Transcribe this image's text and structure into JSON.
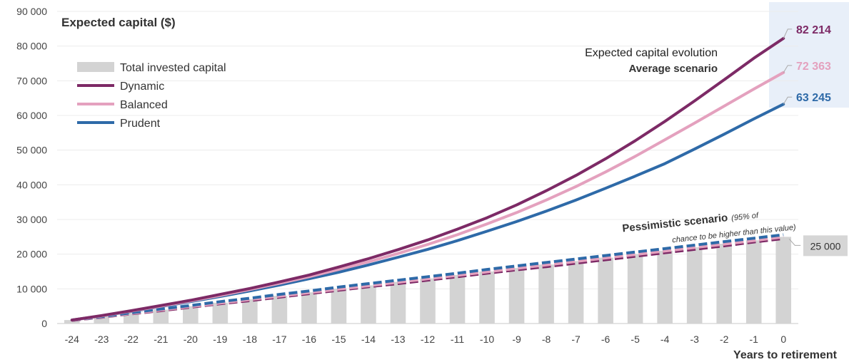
{
  "chart_data": {
    "type": "line",
    "title": "Expected capital ($)",
    "xlabel": "Years to retirement",
    "ylabel": "",
    "ylim": [
      0,
      90000
    ],
    "yticks": [
      0,
      10000,
      20000,
      30000,
      40000,
      50000,
      60000,
      70000,
      80000,
      90000
    ],
    "ytick_labels": [
      "0",
      "10 000",
      "20 000",
      "30 000",
      "40 000",
      "50 000",
      "60 000",
      "70 000",
      "80 000",
      "90 000"
    ],
    "x": [
      -24,
      -23,
      -22,
      -21,
      -20,
      -19,
      -18,
      -17,
      -16,
      -15,
      -14,
      -13,
      -12,
      -11,
      -10,
      -9,
      -8,
      -7,
      -6,
      -5,
      -4,
      -3,
      -2,
      -1,
      0
    ],
    "x_labels": [
      "-24",
      "-23",
      "-22",
      "-21",
      "-20",
      "-19",
      "-18",
      "-17",
      "-16",
      "-15",
      "-14",
      "-13",
      "-12",
      "-11",
      "-10",
      "-9",
      "-8",
      "-7",
      "-6",
      "-5",
      "-4",
      "-3",
      "-2",
      "-1",
      "0"
    ],
    "grid": true,
    "legend_position": "top-left",
    "bars": {
      "name": "Total invested capital",
      "color": "#d3d3d3",
      "values": [
        1000,
        2000,
        3000,
        4000,
        5000,
        6000,
        7000,
        8000,
        9000,
        10000,
        11000,
        12000,
        13000,
        14000,
        15000,
        16000,
        17000,
        18000,
        19000,
        20000,
        21000,
        22000,
        23000,
        24000,
        25000
      ]
    },
    "series": [
      {
        "name": "Dynamic",
        "color": "#7d2a66",
        "values": [
          1000,
          2300,
          3700,
          5200,
          6700,
          8400,
          10100,
          12000,
          14000,
          16300,
          18700,
          21300,
          24100,
          27200,
          30500,
          34200,
          38300,
          42700,
          47500,
          52700,
          58300,
          64200,
          70300,
          76500,
          82214
        ]
      },
      {
        "name": "Balanced",
        "color": "#e4a1be",
        "values": [
          1000,
          2200,
          3600,
          5000,
          6500,
          8100,
          9800,
          11600,
          13500,
          15600,
          17800,
          20200,
          22800,
          25600,
          28700,
          32000,
          35600,
          39500,
          43700,
          48200,
          53000,
          57800,
          62700,
          67600,
          72363
        ]
      },
      {
        "name": "Prudent",
        "color": "#2e6aa8",
        "values": [
          1000,
          2200,
          3500,
          4900,
          6300,
          7800,
          9400,
          11100,
          12900,
          14800,
          16900,
          19100,
          21400,
          23900,
          26600,
          29400,
          32400,
          35600,
          39000,
          42500,
          46100,
          50300,
          54600,
          59000,
          63245
        ]
      }
    ],
    "pessimistic_series": [
      {
        "name": "Dynamic",
        "color": "#7d2a66",
        "values": [
          900,
          1800,
          2800,
          3700,
          4700,
          5700,
          6600,
          7600,
          8600,
          9600,
          10600,
          11500,
          12500,
          13500,
          14500,
          15500,
          16400,
          17400,
          18400,
          19400,
          20400,
          21400,
          22400,
          23500,
          24500
        ]
      },
      {
        "name": "Balanced",
        "color": "#e4a1be",
        "values": [
          950,
          1900,
          2900,
          3900,
          4900,
          5900,
          6900,
          7900,
          8900,
          9900,
          10900,
          11900,
          12900,
          13900,
          14900,
          15900,
          16900,
          17900,
          18900,
          19900,
          20900,
          21900,
          22900,
          23900,
          25000
        ]
      },
      {
        "name": "Prudent",
        "color": "#2e6aa8",
        "values": [
          1000,
          2000,
          3100,
          4200,
          5200,
          6300,
          7300,
          8400,
          9400,
          10500,
          11500,
          12500,
          13500,
          14500,
          15600,
          16600,
          17600,
          18600,
          19600,
          20600,
          21600,
          22600,
          23600,
          24600,
          25600
        ]
      }
    ],
    "end_labels": [
      {
        "text": "82 214",
        "value": 82214,
        "color": "#7d2a66"
      },
      {
        "text": "72 363",
        "value": 72363,
        "color": "#e4a1be"
      },
      {
        "text": "63 245",
        "value": 63245,
        "color": "#2e6aa8"
      }
    ],
    "invested_end_label": {
      "text": "25 000",
      "value": 25000
    },
    "annotations": {
      "expected_line1": "Expected capital evolution",
      "expected_line2": "Average scenario",
      "pessimistic_title": "Pessimistic scenario",
      "pessimistic_note1": "(95% of",
      "pessimistic_note2": "chance to be higher than this value)"
    },
    "highlight_color": "#e8eff9"
  }
}
